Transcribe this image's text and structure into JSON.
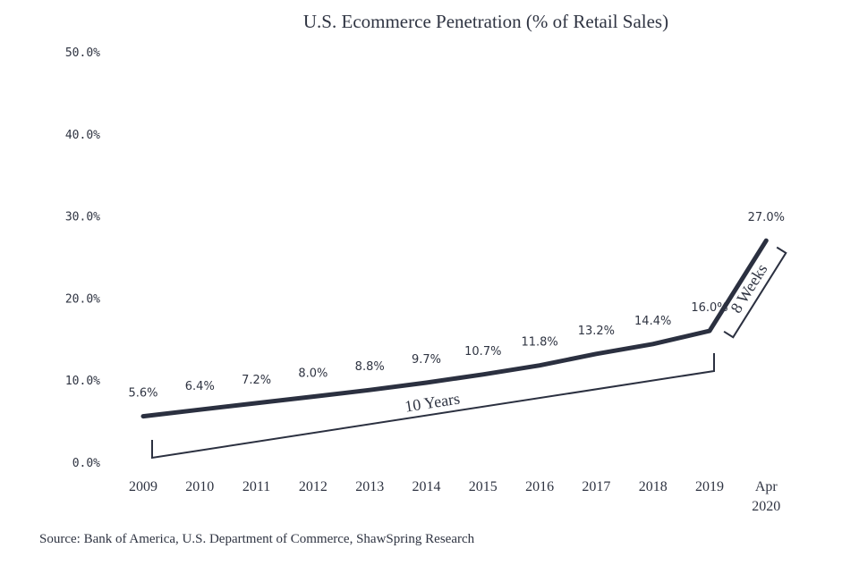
{
  "chart_data": {
    "type": "line",
    "title": "U.S. Ecommerce Penetration (% of Retail Sales)",
    "xlabel": "",
    "ylabel": "",
    "ylim": [
      0,
      50
    ],
    "yticks": [
      "0.0%",
      "10.0%",
      "20.0%",
      "30.0%",
      "40.0%",
      "50.0%"
    ],
    "categories": [
      "2009",
      "2010",
      "2011",
      "2012",
      "2013",
      "2014",
      "2015",
      "2016",
      "2017",
      "2018",
      "2019",
      "Apr 2020"
    ],
    "category_lines": [
      [
        "2009"
      ],
      [
        "2010"
      ],
      [
        "2011"
      ],
      [
        "2012"
      ],
      [
        "2013"
      ],
      [
        "2014"
      ],
      [
        "2015"
      ],
      [
        "2016"
      ],
      [
        "2017"
      ],
      [
        "2018"
      ],
      [
        "2019"
      ],
      [
        "Apr",
        "2020"
      ]
    ],
    "series": [
      {
        "name": "U.S. Ecommerce Penetration",
        "values": [
          5.6,
          6.4,
          7.2,
          8.0,
          8.8,
          9.7,
          10.7,
          11.8,
          13.2,
          14.4,
          16.0,
          27.0
        ],
        "labels": [
          "5.6%",
          "6.4%",
          "7.2%",
          "8.0%",
          "8.8%",
          "9.7%",
          "10.7%",
          "11.8%",
          "13.2%",
          "14.4%",
          "16.0%",
          "27.0%"
        ]
      }
    ],
    "annotations": [
      {
        "text": "10 Years",
        "from": "2009",
        "to": "2019"
      },
      {
        "text": "8 Weeks",
        "from": "2019",
        "to": "Apr 2020"
      }
    ],
    "line_color": "#2b3040",
    "text_color": "#2f3442"
  },
  "source": "Source: Bank of America, U.S. Department of Commerce, ShawSpring Research"
}
